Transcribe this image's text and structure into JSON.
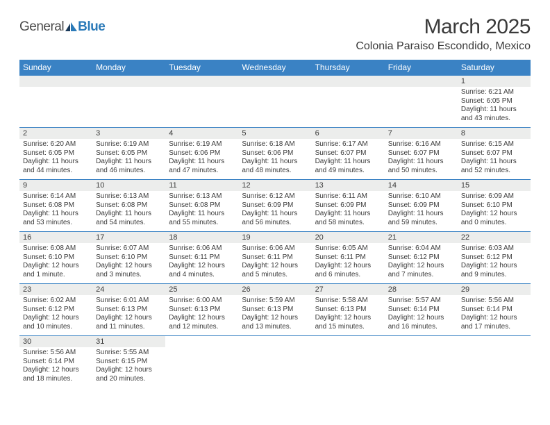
{
  "logo": {
    "text1": "General",
    "text2": "Blue"
  },
  "title": "March 2025",
  "location": "Colonia Paraiso Escondido, Mexico",
  "colors": {
    "header_bg": "#3a82c4",
    "header_text": "#ffffff",
    "daynum_bg": "#ecedec",
    "body_text": "#3a3a3a",
    "border": "#3a82c4",
    "logo_gray": "#4a4a4a",
    "logo_blue": "#2b7ab8"
  },
  "typography": {
    "title_fontsize": 30,
    "location_fontsize": 16,
    "header_fontsize": 12,
    "daynum_fontsize": 11,
    "cell_fontsize": 10
  },
  "weekdays": [
    "Sunday",
    "Monday",
    "Tuesday",
    "Wednesday",
    "Thursday",
    "Friday",
    "Saturday"
  ],
  "weeks": [
    [
      null,
      null,
      null,
      null,
      null,
      null,
      {
        "n": "1",
        "sunrise": "6:21 AM",
        "sunset": "6:05 PM",
        "daylight": "11 hours and 43 minutes."
      }
    ],
    [
      {
        "n": "2",
        "sunrise": "6:20 AM",
        "sunset": "6:05 PM",
        "daylight": "11 hours and 44 minutes."
      },
      {
        "n": "3",
        "sunrise": "6:19 AM",
        "sunset": "6:05 PM",
        "daylight": "11 hours and 46 minutes."
      },
      {
        "n": "4",
        "sunrise": "6:19 AM",
        "sunset": "6:06 PM",
        "daylight": "11 hours and 47 minutes."
      },
      {
        "n": "5",
        "sunrise": "6:18 AM",
        "sunset": "6:06 PM",
        "daylight": "11 hours and 48 minutes."
      },
      {
        "n": "6",
        "sunrise": "6:17 AM",
        "sunset": "6:07 PM",
        "daylight": "11 hours and 49 minutes."
      },
      {
        "n": "7",
        "sunrise": "6:16 AM",
        "sunset": "6:07 PM",
        "daylight": "11 hours and 50 minutes."
      },
      {
        "n": "8",
        "sunrise": "6:15 AM",
        "sunset": "6:07 PM",
        "daylight": "11 hours and 52 minutes."
      }
    ],
    [
      {
        "n": "9",
        "sunrise": "6:14 AM",
        "sunset": "6:08 PM",
        "daylight": "11 hours and 53 minutes."
      },
      {
        "n": "10",
        "sunrise": "6:13 AM",
        "sunset": "6:08 PM",
        "daylight": "11 hours and 54 minutes."
      },
      {
        "n": "11",
        "sunrise": "6:13 AM",
        "sunset": "6:08 PM",
        "daylight": "11 hours and 55 minutes."
      },
      {
        "n": "12",
        "sunrise": "6:12 AM",
        "sunset": "6:09 PM",
        "daylight": "11 hours and 56 minutes."
      },
      {
        "n": "13",
        "sunrise": "6:11 AM",
        "sunset": "6:09 PM",
        "daylight": "11 hours and 58 minutes."
      },
      {
        "n": "14",
        "sunrise": "6:10 AM",
        "sunset": "6:09 PM",
        "daylight": "11 hours and 59 minutes."
      },
      {
        "n": "15",
        "sunrise": "6:09 AM",
        "sunset": "6:10 PM",
        "daylight": "12 hours and 0 minutes."
      }
    ],
    [
      {
        "n": "16",
        "sunrise": "6:08 AM",
        "sunset": "6:10 PM",
        "daylight": "12 hours and 1 minute."
      },
      {
        "n": "17",
        "sunrise": "6:07 AM",
        "sunset": "6:10 PM",
        "daylight": "12 hours and 3 minutes."
      },
      {
        "n": "18",
        "sunrise": "6:06 AM",
        "sunset": "6:11 PM",
        "daylight": "12 hours and 4 minutes."
      },
      {
        "n": "19",
        "sunrise": "6:06 AM",
        "sunset": "6:11 PM",
        "daylight": "12 hours and 5 minutes."
      },
      {
        "n": "20",
        "sunrise": "6:05 AM",
        "sunset": "6:11 PM",
        "daylight": "12 hours and 6 minutes."
      },
      {
        "n": "21",
        "sunrise": "6:04 AM",
        "sunset": "6:12 PM",
        "daylight": "12 hours and 7 minutes."
      },
      {
        "n": "22",
        "sunrise": "6:03 AM",
        "sunset": "6:12 PM",
        "daylight": "12 hours and 9 minutes."
      }
    ],
    [
      {
        "n": "23",
        "sunrise": "6:02 AM",
        "sunset": "6:12 PM",
        "daylight": "12 hours and 10 minutes."
      },
      {
        "n": "24",
        "sunrise": "6:01 AM",
        "sunset": "6:13 PM",
        "daylight": "12 hours and 11 minutes."
      },
      {
        "n": "25",
        "sunrise": "6:00 AM",
        "sunset": "6:13 PM",
        "daylight": "12 hours and 12 minutes."
      },
      {
        "n": "26",
        "sunrise": "5:59 AM",
        "sunset": "6:13 PM",
        "daylight": "12 hours and 13 minutes."
      },
      {
        "n": "27",
        "sunrise": "5:58 AM",
        "sunset": "6:13 PM",
        "daylight": "12 hours and 15 minutes."
      },
      {
        "n": "28",
        "sunrise": "5:57 AM",
        "sunset": "6:14 PM",
        "daylight": "12 hours and 16 minutes."
      },
      {
        "n": "29",
        "sunrise": "5:56 AM",
        "sunset": "6:14 PM",
        "daylight": "12 hours and 17 minutes."
      }
    ],
    [
      {
        "n": "30",
        "sunrise": "5:56 AM",
        "sunset": "6:14 PM",
        "daylight": "12 hours and 18 minutes."
      },
      {
        "n": "31",
        "sunrise": "5:55 AM",
        "sunset": "6:15 PM",
        "daylight": "12 hours and 20 minutes."
      },
      null,
      null,
      null,
      null,
      null
    ]
  ],
  "labels": {
    "sunrise": "Sunrise:",
    "sunset": "Sunset:",
    "daylight": "Daylight:"
  }
}
